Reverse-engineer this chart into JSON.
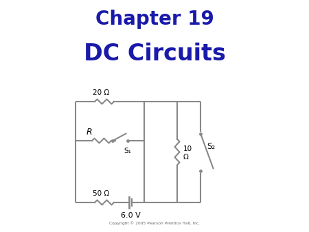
{
  "title1": "Chapter 19",
  "title2": "DC Circuits",
  "title_color": "#1a1aaa",
  "bg_color": "#ffffff",
  "copyright": "Copyright © 2005 Pearson Prentice Hall, Inc.",
  "circuit_color": "#888888",
  "label_20": "20 Ω",
  "label_R": "R",
  "label_S1": "S₁",
  "label_50": "50 Ω",
  "label_6V": "6.0 V",
  "label_10a": "10",
  "label_10b": "Ω",
  "label_S2": "S₂"
}
